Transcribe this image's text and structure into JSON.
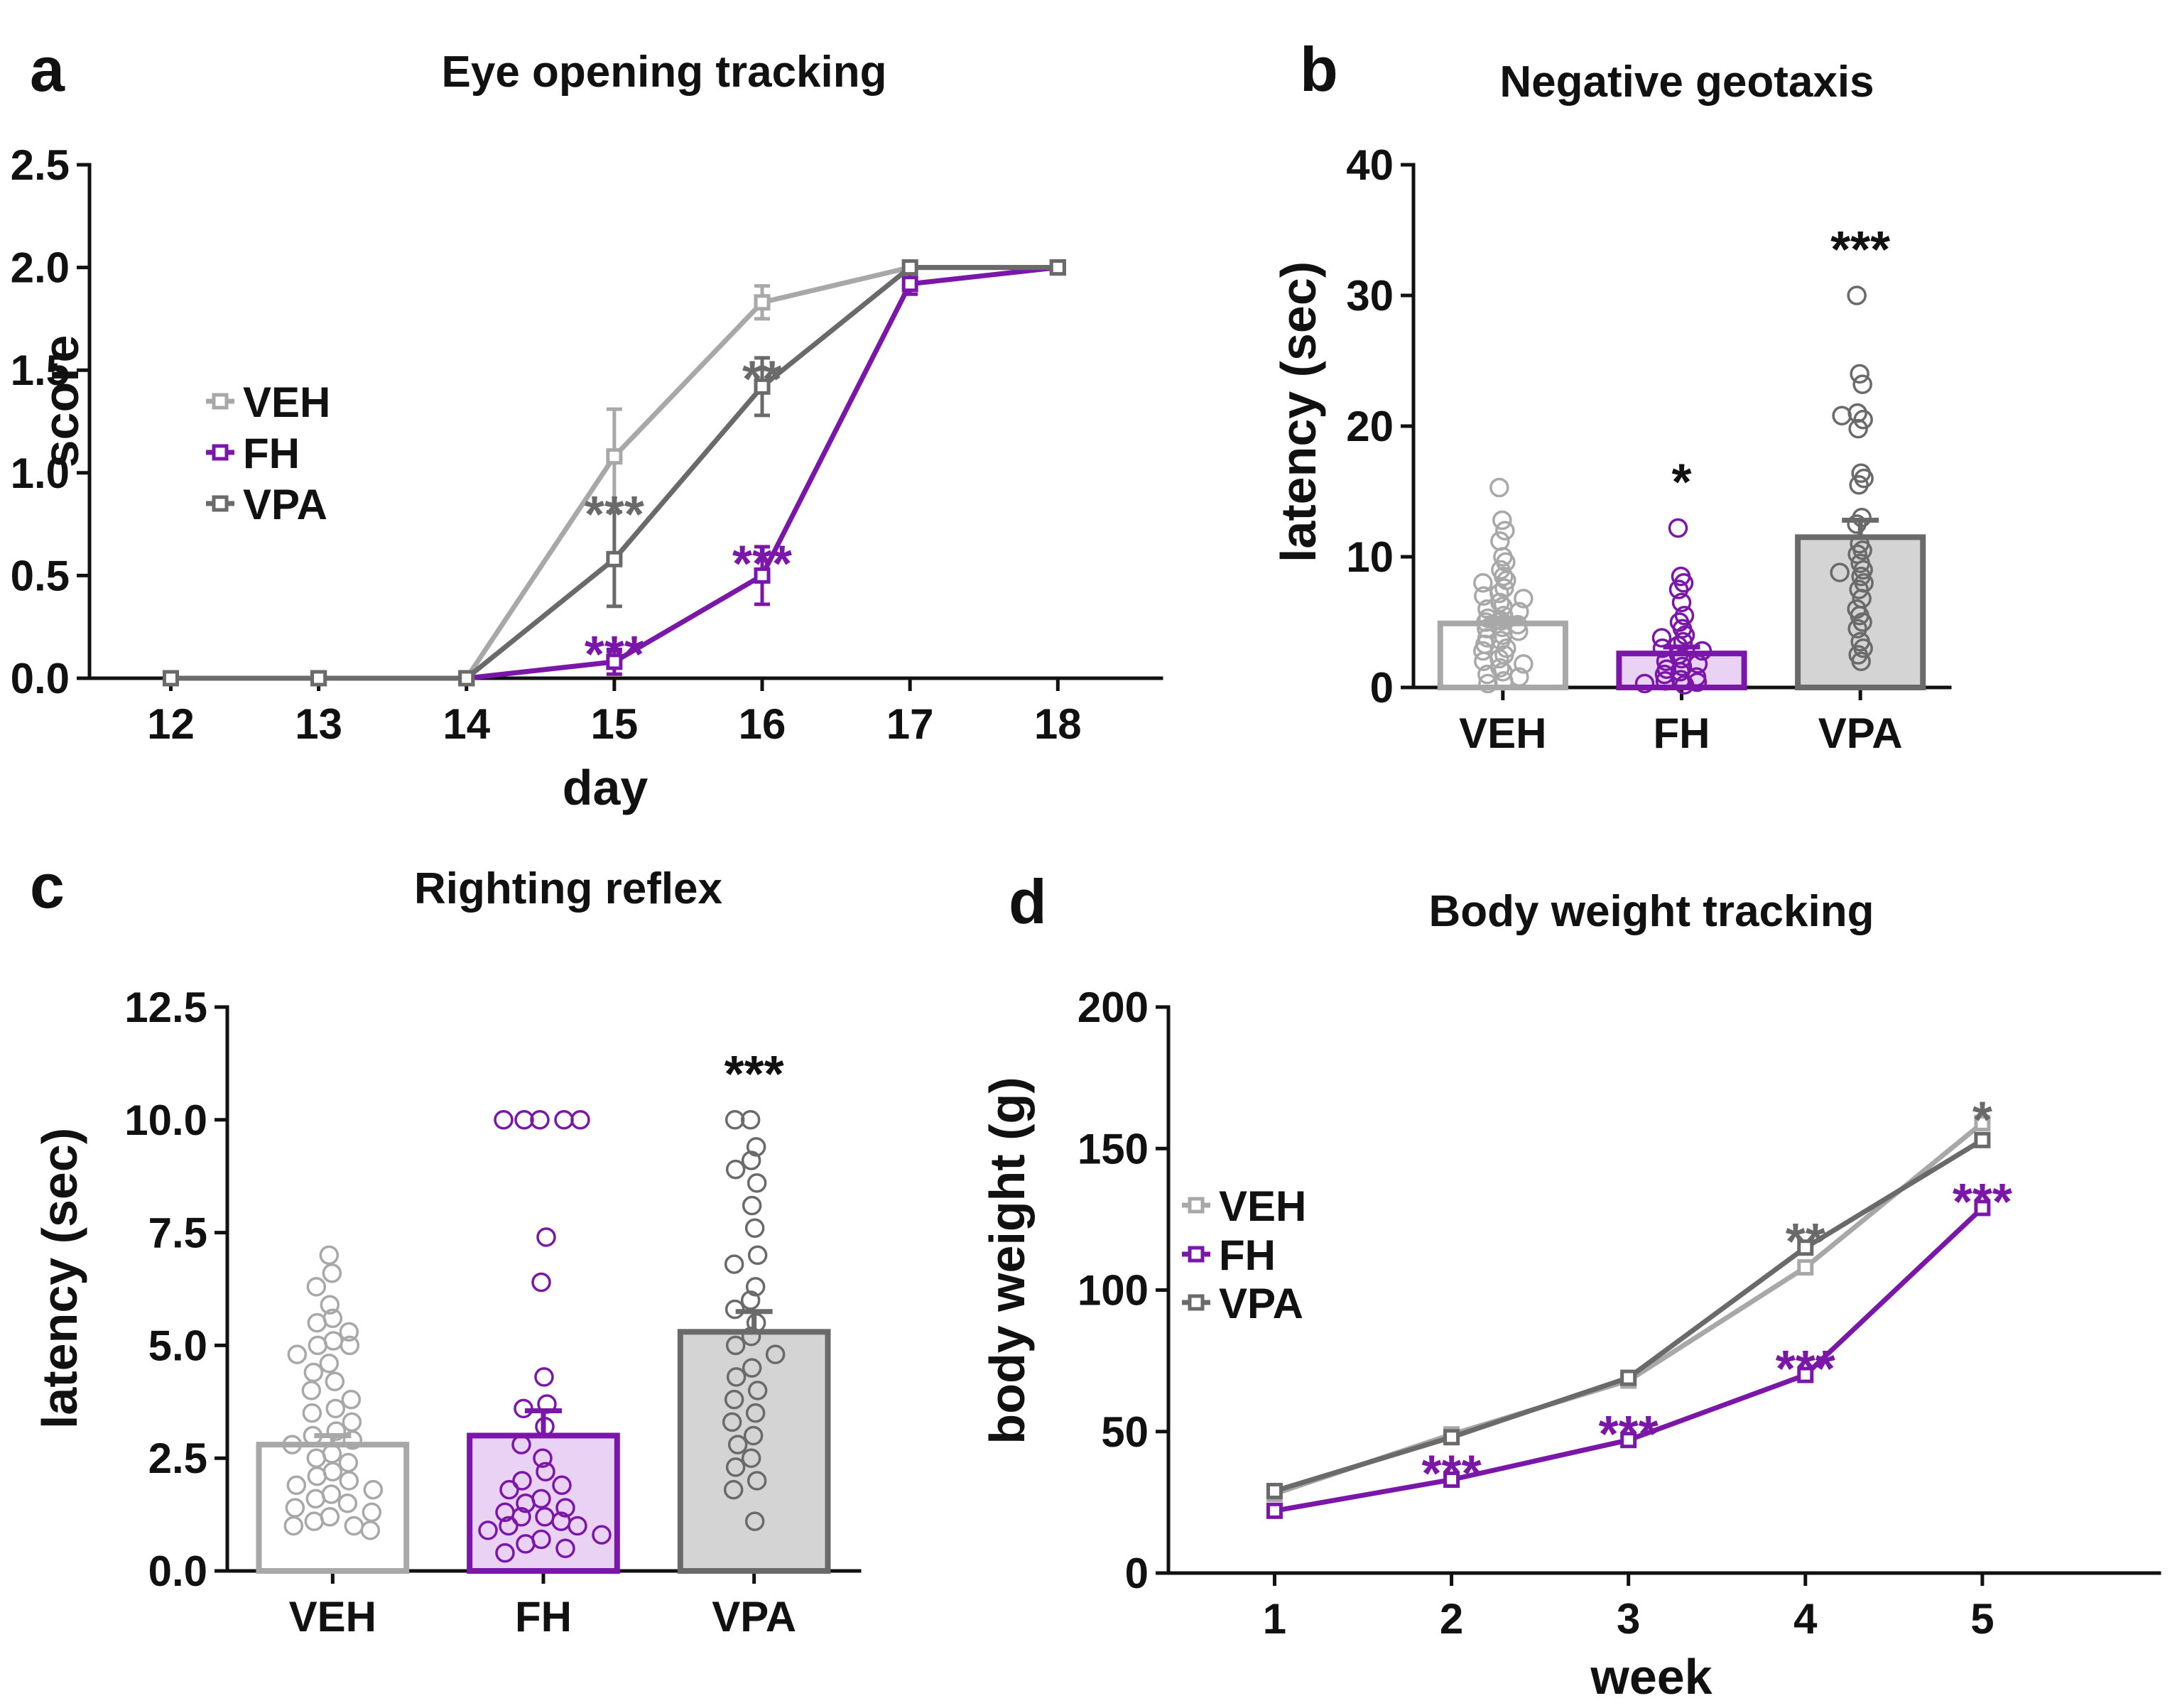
{
  "colors": {
    "veh": "#a8a8a8",
    "fh": "#7b17a8",
    "vpa": "#6a6a6a",
    "black": "#111111",
    "veh_bar_fill": "#ffffff",
    "fh_bar_fill": "#ead2f5",
    "vpa_bar_fill": "#d4d4d4"
  },
  "chart_data": [
    {
      "id": "a",
      "letter": "a",
      "type": "line",
      "title": "Eye opening tracking",
      "xlabel": "day",
      "ylabel": "score",
      "x": [
        12,
        13,
        14,
        15,
        16,
        17,
        18
      ],
      "xlim": [
        11.45,
        18.7
      ],
      "ylim": [
        0,
        2.5
      ],
      "yticks": [
        0,
        0.5,
        1.0,
        1.5,
        2.0,
        2.5
      ],
      "ytick_labels": [
        "0.0",
        "0.5",
        "1.0",
        "1.5",
        "2.0",
        "2.5"
      ],
      "xtick_labels": [
        "12",
        "13",
        "14",
        "15",
        "16",
        "17",
        "18"
      ],
      "legend": {
        "placement": "center-left",
        "entries": [
          "VEH",
          "FH",
          "VPA"
        ]
      },
      "series": [
        {
          "name": "VEH",
          "color_key": "veh",
          "values": [
            0,
            0,
            0,
            1.08,
            1.83,
            2.0,
            2.0
          ],
          "err": [
            0,
            0,
            0,
            0.23,
            0.08,
            0,
            0
          ]
        },
        {
          "name": "FH",
          "color_key": "fh",
          "values": [
            0,
            0,
            0,
            0.08,
            0.5,
            1.92,
            2.0
          ],
          "err": [
            0,
            0,
            0,
            0.06,
            0.14,
            0.05,
            0
          ]
        },
        {
          "name": "VPA",
          "color_key": "vpa",
          "values": [
            0,
            0,
            0,
            0.58,
            1.42,
            2.0,
            2.0
          ],
          "err": [
            0,
            0,
            0,
            0.23,
            0.14,
            0,
            0
          ]
        }
      ],
      "annotations": [
        {
          "text": "***",
          "x": 15,
          "y": 0.85,
          "color_key": "vpa"
        },
        {
          "text": "***",
          "x": 15,
          "y": 0.17,
          "color_key": "fh"
        },
        {
          "text": "**",
          "x": 16,
          "y": 1.51,
          "color_key": "vpa"
        },
        {
          "text": "***",
          "x": 16,
          "y": 0.61,
          "color_key": "fh"
        }
      ]
    },
    {
      "id": "b",
      "letter": "b",
      "type": "bar",
      "title": "Negative geotaxis",
      "xlabel": "",
      "ylabel": "latency (sec)",
      "categories": [
        "VEH",
        "FH",
        "VPA"
      ],
      "ylim": [
        0,
        40
      ],
      "yticks": [
        0,
        10,
        20,
        30,
        40
      ],
      "ytick_labels": [
        "0",
        "10",
        "20",
        "30",
        "40"
      ],
      "series": [
        {
          "name": "VEH",
          "color_key": "veh",
          "fill_key": "veh_bar_fill",
          "value": 4.9,
          "err": 0.4,
          "sig": "",
          "points": [
            15.3,
            12.8,
            12.0,
            11.2,
            10.0,
            9.6,
            9.0,
            8.5,
            8.2,
            8.0,
            7.6,
            7.2,
            7.0,
            6.8,
            6.5,
            6.2,
            6.0,
            5.8,
            5.5,
            5.3,
            5.1,
            5.0,
            4.8,
            4.6,
            4.5,
            4.3,
            4.0,
            3.8,
            3.6,
            3.3,
            3.0,
            2.8,
            2.5,
            2.2,
            2.0,
            1.8,
            1.5,
            1.2,
            1.0,
            0.8,
            0.5,
            0.3
          ]
        },
        {
          "name": "FH",
          "color_key": "fh",
          "fill_key": "fh_bar_fill",
          "value": 2.6,
          "err": 0.5,
          "sig": "*",
          "points": [
            12.2,
            8.5,
            8.0,
            7.5,
            6.5,
            5.5,
            5.0,
            4.5,
            4.0,
            3.8,
            3.5,
            3.2,
            3.0,
            2.8,
            2.5,
            2.2,
            2.0,
            1.8,
            1.6,
            1.4,
            1.2,
            1.0,
            0.8,
            0.6,
            0.5,
            0.4,
            0.3,
            0.2
          ]
        },
        {
          "name": "VPA",
          "color_key": "vpa",
          "fill_key": "vpa_bar_fill",
          "value": 11.5,
          "err": 1.3,
          "sig": "***",
          "points": [
            30.0,
            24.0,
            23.2,
            21.0,
            20.8,
            20.5,
            19.8,
            16.4,
            16.0,
            15.5,
            13.0,
            12.5,
            11.0,
            10.5,
            10.2,
            9.5,
            9.0,
            8.8,
            8.5,
            8.0,
            7.5,
            6.8,
            6.0,
            5.5,
            5.0,
            4.5,
            3.5,
            3.0,
            2.5,
            2.0
          ]
        }
      ]
    },
    {
      "id": "c",
      "letter": "c",
      "type": "bar",
      "title": "Righting reflex",
      "xlabel": "",
      "ylabel": "latency (sec)",
      "categories": [
        "VEH",
        "FH",
        "VPA"
      ],
      "ylim": [
        0,
        12.5
      ],
      "yticks": [
        0,
        2.5,
        5.0,
        7.5,
        10.0,
        12.5
      ],
      "ytick_labels": [
        "0.0",
        "2.5",
        "5.0",
        "7.5",
        "10.0",
        "12.5"
      ],
      "series": [
        {
          "name": "VEH",
          "color_key": "veh",
          "fill_key": "veh_bar_fill",
          "value": 2.8,
          "err": 0.2,
          "sig": "",
          "points": [
            7.0,
            6.6,
            6.3,
            5.9,
            5.6,
            5.5,
            5.3,
            5.1,
            5.0,
            5.0,
            4.8,
            4.6,
            4.4,
            4.2,
            4.0,
            3.8,
            3.6,
            3.5,
            3.3,
            3.1,
            3.0,
            2.9,
            2.8,
            2.6,
            2.5,
            2.4,
            2.2,
            2.1,
            2.0,
            1.9,
            1.8,
            1.7,
            1.6,
            1.5,
            1.4,
            1.3,
            1.2,
            1.1,
            1.0,
            1.0,
            0.9
          ]
        },
        {
          "name": "FH",
          "color_key": "fh",
          "fill_key": "fh_bar_fill",
          "value": 3.0,
          "err": 0.55,
          "sig": "",
          "points": [
            10.0,
            10.0,
            10.0,
            10.0,
            10.0,
            7.4,
            6.4,
            4.3,
            3.7,
            3.6,
            3.2,
            2.8,
            2.5,
            2.2,
            2.0,
            1.9,
            1.8,
            1.6,
            1.5,
            1.4,
            1.3,
            1.2,
            1.2,
            1.1,
            1.0,
            1.0,
            0.9,
            0.8,
            0.7,
            0.6,
            0.5,
            0.4
          ]
        },
        {
          "name": "VPA",
          "color_key": "vpa",
          "fill_key": "vpa_bar_fill",
          "value": 5.3,
          "err": 0.45,
          "sig": "***",
          "points": [
            10.0,
            10.0,
            9.4,
            9.1,
            8.9,
            8.6,
            8.1,
            7.6,
            7.0,
            6.8,
            6.3,
            6.0,
            5.8,
            5.5,
            5.2,
            5.0,
            4.8,
            4.5,
            4.3,
            4.0,
            3.8,
            3.5,
            3.3,
            3.0,
            2.8,
            2.5,
            2.3,
            2.0,
            1.8,
            1.1
          ]
        }
      ]
    },
    {
      "id": "d",
      "letter": "d",
      "type": "line",
      "title": "Body weight tracking",
      "xlabel": "week",
      "ylabel": "body weight (g)",
      "x": [
        1,
        2,
        3,
        4,
        5
      ],
      "xlim": [
        0.4,
        6.0
      ],
      "ylim": [
        0,
        200
      ],
      "yticks": [
        0,
        50,
        100,
        150,
        200
      ],
      "ytick_labels": [
        "0",
        "50",
        "100",
        "150",
        "200"
      ],
      "xtick_labels": [
        "1",
        "2",
        "3",
        "4",
        "5"
      ],
      "legend": {
        "placement": "center-left",
        "entries": [
          "VEH",
          "FH",
          "VPA"
        ]
      },
      "series": [
        {
          "name": "VEH",
          "color_key": "veh",
          "values": [
            28,
            49,
            68,
            108,
            159
          ],
          "err": [
            1,
            1.5,
            1.5,
            2,
            2
          ]
        },
        {
          "name": "FH",
          "color_key": "fh",
          "values": [
            22,
            33,
            47,
            70,
            129
          ],
          "err": [
            1,
            1,
            1.5,
            1.5,
            2
          ]
        },
        {
          "name": "VPA",
          "color_key": "vpa",
          "values": [
            29,
            48,
            69,
            115,
            153
          ],
          "err": [
            1,
            1.5,
            1.5,
            2,
            2
          ]
        }
      ],
      "annotations": [
        {
          "text": "***",
          "x": 2,
          "y": 39,
          "color_key": "fh"
        },
        {
          "text": "***",
          "x": 3,
          "y": 53,
          "color_key": "fh"
        },
        {
          "text": "**",
          "x": 4,
          "y": 121,
          "color_key": "vpa"
        },
        {
          "text": "***",
          "x": 4,
          "y": 76,
          "color_key": "fh"
        },
        {
          "text": "*",
          "x": 5,
          "y": 164,
          "color_key": "vpa"
        },
        {
          "text": "***",
          "x": 5,
          "y": 135,
          "color_key": "fh"
        }
      ]
    }
  ]
}
